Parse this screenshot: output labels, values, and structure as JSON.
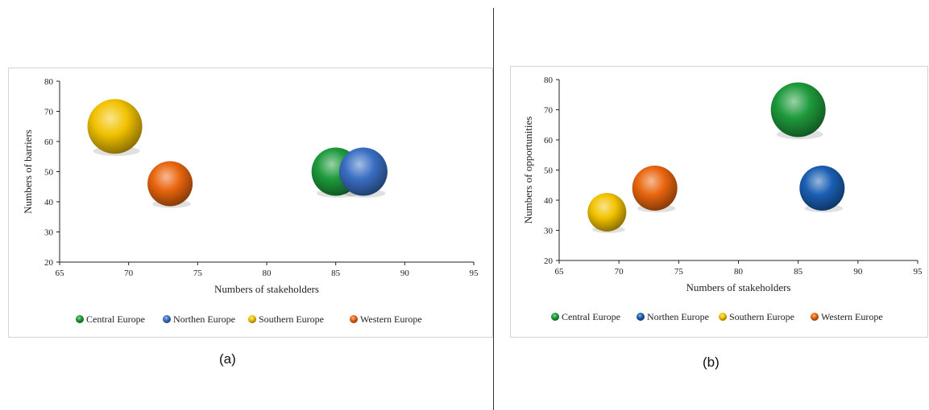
{
  "chart_data": [
    {
      "type": "bubble",
      "panel": "a",
      "caption": "(a)",
      "xlabel": "Numbers of stakeholders",
      "ylabel": "Numbers of barriers",
      "xlim": [
        65,
        95
      ],
      "ylim": [
        20,
        80
      ],
      "xticks": [
        65,
        70,
        75,
        80,
        85,
        90,
        95
      ],
      "yticks": [
        20,
        30,
        40,
        50,
        60,
        70,
        80
      ],
      "grid": false,
      "legend_position": "bottom",
      "series": [
        {
          "name": "Central Europe",
          "x": 85,
          "y": 50,
          "size": 30,
          "color": "#1e9a3c"
        },
        {
          "name": "Northen Europe",
          "x": 87,
          "y": 50,
          "size": 30,
          "color": "#3a6fc4"
        },
        {
          "name": "Southern Europe",
          "x": 69,
          "y": 65,
          "size": 34,
          "color": "#f2c200"
        },
        {
          "name": "Western Europe",
          "x": 73,
          "y": 46,
          "size": 28,
          "color": "#e9650e"
        }
      ]
    },
    {
      "type": "bubble",
      "panel": "b",
      "caption": "(b)",
      "xlabel": "Numbers of stakeholders",
      "ylabel": "Numbers of opportunities",
      "xlim": [
        65,
        95
      ],
      "ylim": [
        20,
        80
      ],
      "xticks": [
        65,
        70,
        75,
        80,
        85,
        90,
        95
      ],
      "yticks": [
        20,
        30,
        40,
        50,
        60,
        70,
        80
      ],
      "grid": false,
      "legend_position": "bottom",
      "series": [
        {
          "name": "Central Europe",
          "x": 85,
          "y": 70,
          "size": 34,
          "color": "#1e9a3c"
        },
        {
          "name": "Northen Europe",
          "x": 87,
          "y": 44,
          "size": 28,
          "color": "#1a5fb4"
        },
        {
          "name": "Southern Europe",
          "x": 69,
          "y": 36,
          "size": 24,
          "color": "#f2c200"
        },
        {
          "name": "Western Europe",
          "x": 73,
          "y": 44,
          "size": 28,
          "color": "#e9650e"
        }
      ]
    }
  ]
}
